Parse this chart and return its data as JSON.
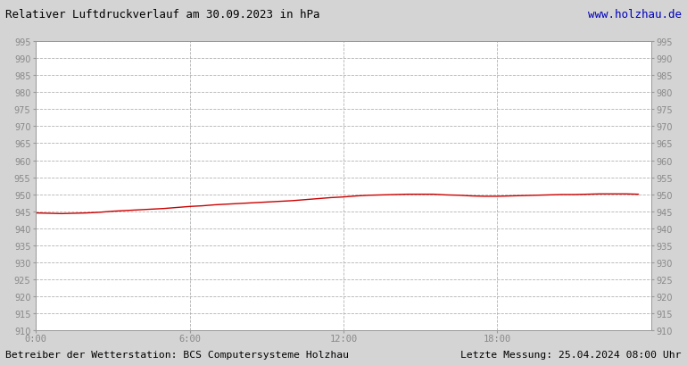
{
  "title": "Relativer Luftdruckverlauf am 30.09.2023 in hPa",
  "url_text": "www.holzhau.de",
  "footer_left": "Betreiber der Wetterstation: BCS Computersysteme Holzhau",
  "footer_right": "Letzte Messung: 25.04.2024 08:00 Uhr",
  "ymin": 910,
  "ymax": 995,
  "ytick_step": 5,
  "x_tick_labels": [
    "0:00",
    "6:00",
    "12:00",
    "18:00"
  ],
  "x_tick_positions": [
    0,
    6,
    12,
    18
  ],
  "line_color": "#cc0000",
  "outer_bg_color": "#d4d4d4",
  "plot_bg_color": "#ffffff",
  "grid_color": "#aaaaaa",
  "title_color": "#000000",
  "url_color": "#0000bb",
  "footer_color": "#000000",
  "tick_label_color": "#888888",
  "pressure_hours": [
    0,
    0.5,
    1,
    1.5,
    2,
    2.5,
    3,
    3.5,
    4,
    4.5,
    5,
    5.5,
    6,
    6.5,
    7,
    7.5,
    8,
    8.5,
    9,
    9.5,
    10,
    10.5,
    11,
    11.5,
    12,
    12.5,
    13,
    13.5,
    14,
    14.5,
    15,
    15.5,
    16,
    16.5,
    17,
    17.5,
    18,
    18.5,
    19,
    19.5,
    20,
    20.5,
    21,
    21.5,
    22,
    22.5,
    23,
    23.5
  ],
  "pressure_values": [
    944.5,
    944.4,
    944.3,
    944.4,
    944.5,
    944.7,
    945.0,
    945.2,
    945.4,
    945.6,
    945.8,
    946.1,
    946.4,
    946.6,
    946.9,
    947.1,
    947.3,
    947.5,
    947.7,
    947.9,
    948.1,
    948.4,
    948.7,
    949.0,
    949.2,
    949.5,
    949.7,
    949.8,
    949.9,
    950.0,
    950.0,
    950.0,
    949.8,
    949.7,
    949.5,
    949.4,
    949.4,
    949.5,
    949.6,
    949.7,
    949.8,
    949.9,
    949.9,
    950.0,
    950.1,
    950.1,
    950.1,
    950.0
  ]
}
